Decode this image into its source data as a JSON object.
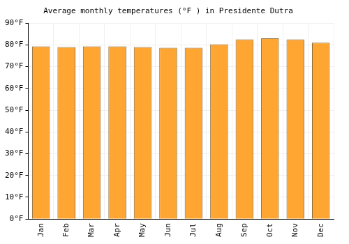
{
  "chart_data": {
    "type": "bar",
    "title": "Average monthly temperatures (°F ) in Presidente Dutra",
    "categories": [
      "Jan",
      "Feb",
      "Mar",
      "Apr",
      "May",
      "Jun",
      "Jul",
      "Aug",
      "Sep",
      "Oct",
      "Nov",
      "Dec"
    ],
    "values": [
      79.3,
      79.0,
      79.3,
      79.3,
      79.0,
      78.7,
      78.7,
      80.3,
      82.5,
      83.0,
      82.5,
      81.0
    ],
    "color": "#ffa632",
    "ylim": [
      0,
      90
    ],
    "yticks": [
      {
        "value": 0,
        "label": "0°F"
      },
      {
        "value": 10,
        "label": "10°F"
      },
      {
        "value": 20,
        "label": "20°F"
      },
      {
        "value": 30,
        "label": "30°F"
      },
      {
        "value": 40,
        "label": "40°F"
      },
      {
        "value": 50,
        "label": "50°F"
      },
      {
        "value": 60,
        "label": "60°F"
      },
      {
        "value": 70,
        "label": "70°F"
      },
      {
        "value": 80,
        "label": "80°F"
      },
      {
        "value": 90,
        "label": "90°F"
      }
    ],
    "grid": true
  }
}
